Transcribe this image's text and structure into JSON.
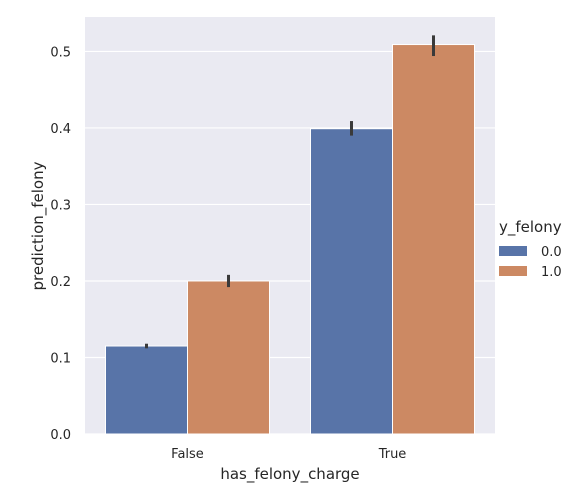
{
  "chart_data": {
    "type": "bar",
    "title": "",
    "xlabel": "has_felony_charge",
    "ylabel": "prediction_felony",
    "categories": [
      "False",
      "True"
    ],
    "ylim": [
      0,
      0.545
    ],
    "yticks": [
      "0.0",
      "0.1",
      "0.2",
      "0.3",
      "0.4",
      "0.5"
    ],
    "grid": true,
    "legend": {
      "title": "y_felony",
      "placement": "right"
    },
    "series": [
      {
        "name": "0.0",
        "color": "#5874a8",
        "values": [
          0.115,
          0.399
        ],
        "ci": [
          [
            0.112,
            0.118
          ],
          [
            0.39,
            0.409
          ]
        ]
      },
      {
        "name": "1.0",
        "color": "#cc8963",
        "values": [
          0.2,
          0.509
        ],
        "ci": [
          [
            0.192,
            0.208
          ],
          [
            0.494,
            0.521
          ]
        ]
      }
    ],
    "errorbar_color": "#3a3a3a",
    "background_color": "#eaeaf2"
  }
}
